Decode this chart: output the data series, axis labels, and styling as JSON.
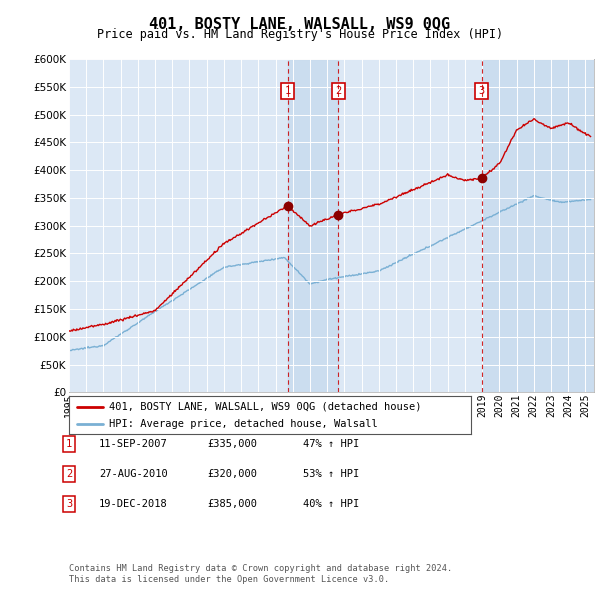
{
  "title": "401, BOSTY LANE, WALSALL, WS9 0QG",
  "subtitle": "Price paid vs. HM Land Registry's House Price Index (HPI)",
  "legend_line1": "401, BOSTY LANE, WALSALL, WS9 0QG (detached house)",
  "legend_line2": "HPI: Average price, detached house, Walsall",
  "footer1": "Contains HM Land Registry data © Crown copyright and database right 2024.",
  "footer2": "This data is licensed under the Open Government Licence v3.0.",
  "transactions": [
    {
      "num": 1,
      "date": "11-SEP-2007",
      "price": 335000,
      "hpi_pct": "47% ↑ HPI",
      "year": 2007.7
    },
    {
      "num": 2,
      "date": "27-AUG-2010",
      "price": 320000,
      "hpi_pct": "53% ↑ HPI",
      "year": 2010.65
    },
    {
      "num": 3,
      "date": "19-DEC-2018",
      "price": 385000,
      "hpi_pct": "40% ↑ HPI",
      "year": 2018.97
    }
  ],
  "ylim": [
    0,
    600000
  ],
  "yticks": [
    0,
    50000,
    100000,
    150000,
    200000,
    250000,
    300000,
    350000,
    400000,
    450000,
    500000,
    550000,
    600000
  ],
  "xlim_start": 1995.0,
  "xlim_end": 2025.5,
  "background_color": "#dce8f5",
  "plot_bg_color": "#dce8f5",
  "red_color": "#cc0000",
  "blue_color": "#7ab0d4",
  "shade_color": "#c5d9ed",
  "grid_color": "#ffffff"
}
